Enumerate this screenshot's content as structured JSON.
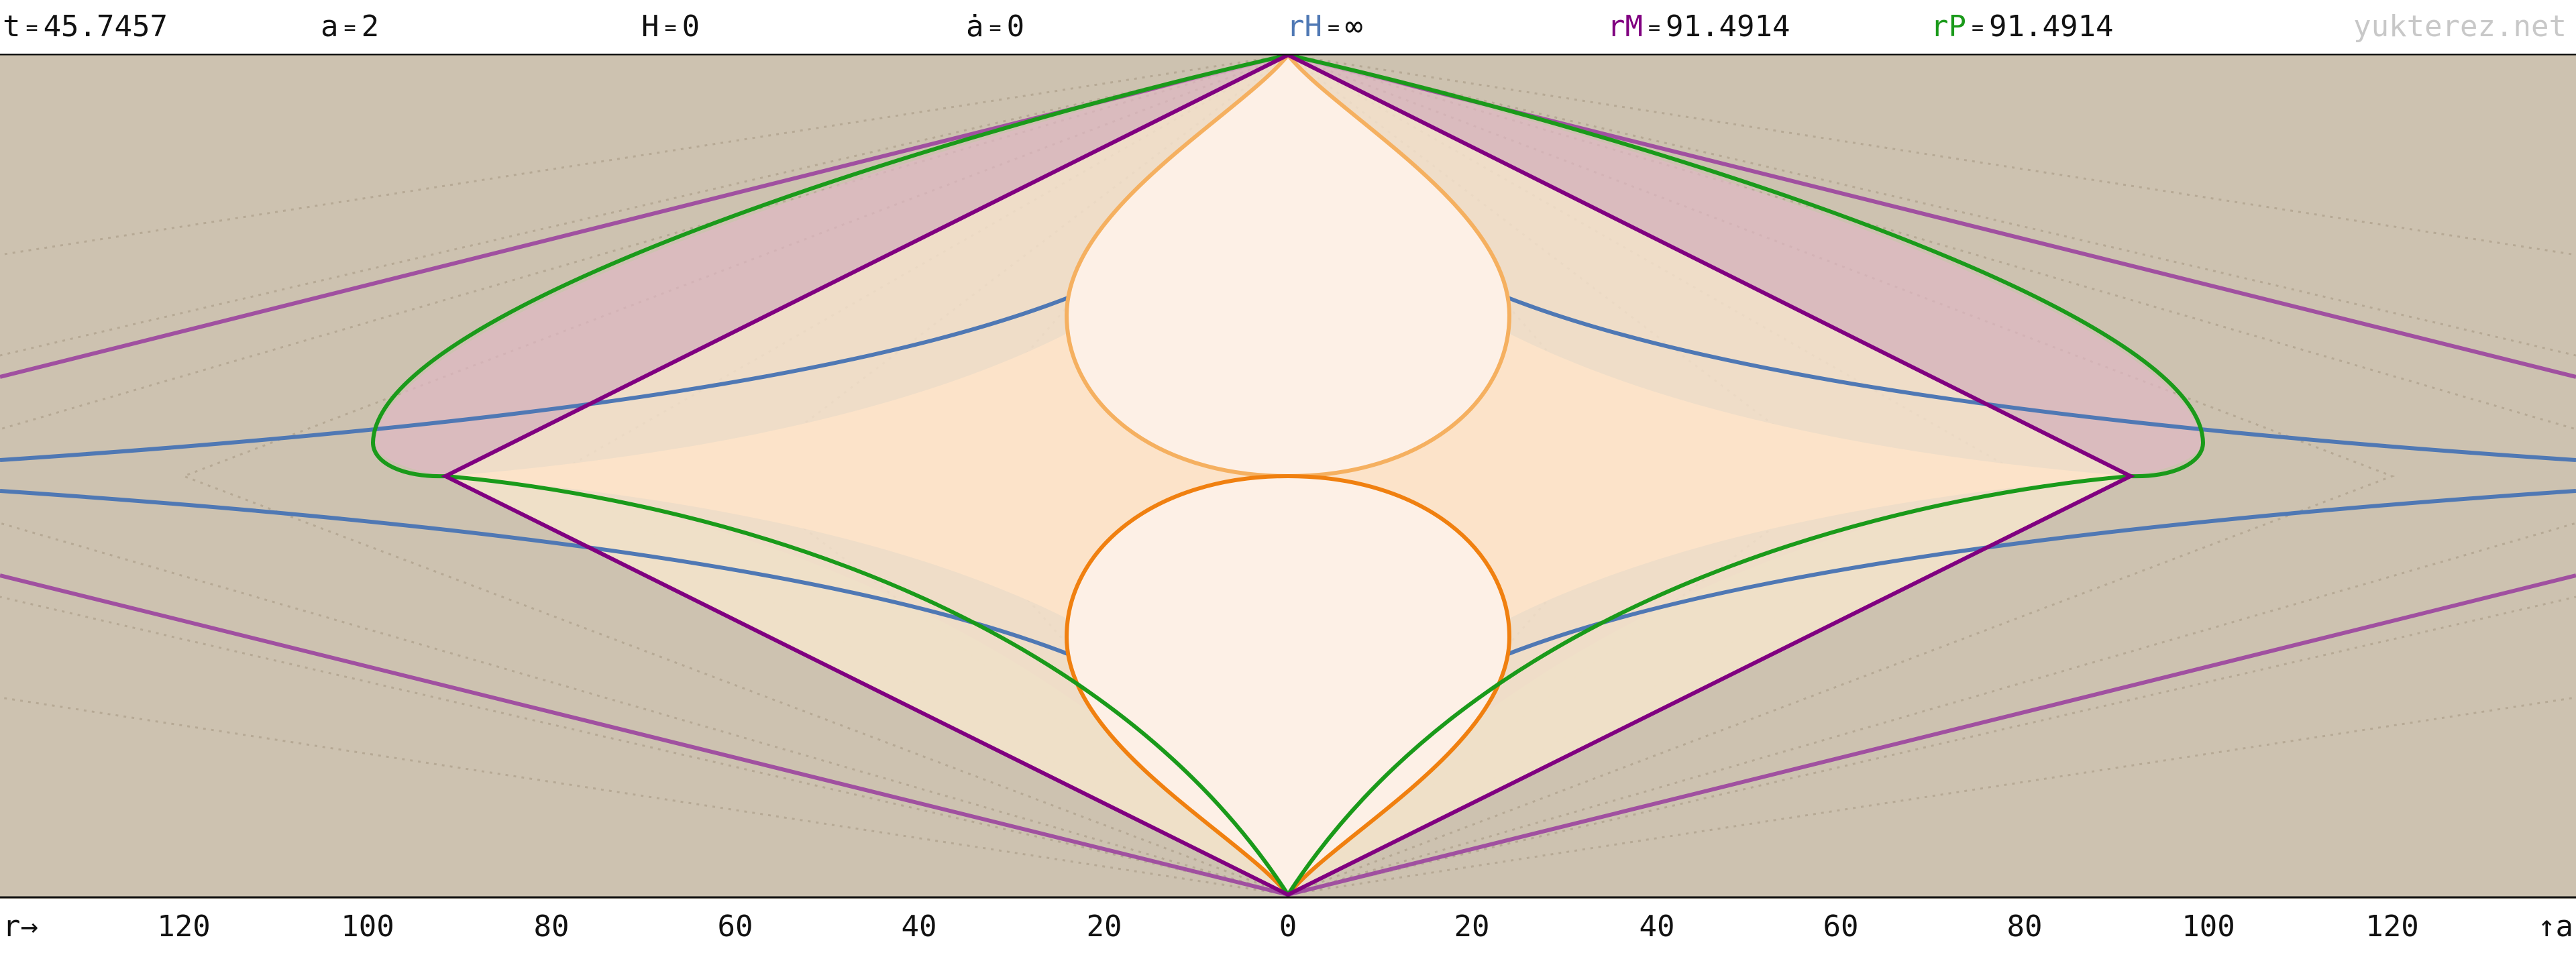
{
  "header": {
    "t": {
      "label": "t",
      "eq": "=",
      "value": "45.7457",
      "color": "#111111"
    },
    "a": {
      "label": "a",
      "eq": "=",
      "value": "2",
      "color": "#111111"
    },
    "H": {
      "label": "H",
      "eq": "=",
      "value": "0",
      "color": "#111111"
    },
    "adot": {
      "label": "ȧ",
      "eq": "=",
      "value": "0",
      "color": "#111111"
    },
    "rH": {
      "label": "rH",
      "eq": "=",
      "value": "∞",
      "color": "#4f78b4"
    },
    "rM": {
      "label": "rM",
      "eq": "=",
      "value": "91.4914",
      "color": "#800080"
    },
    "rP": {
      "label": "rP",
      "eq": "=",
      "value": "91.4914",
      "color": "#1a9a1a"
    },
    "watermark": "yukterez.net"
  },
  "axis": {
    "r_label": "r→",
    "a_label": "↑a",
    "ticks": [
      "120",
      "100",
      "80",
      "60",
      "40",
      "20",
      "0",
      "20",
      "40",
      "60",
      "80",
      "100",
      "120"
    ]
  },
  "colors": {
    "background": "#cdc2b0",
    "grid": "#b8ab98",
    "hubble_blue": "#4f78b4",
    "horizon_purple": "#800080",
    "particle_green": "#1a9a1a",
    "light_orange_dark": "#f08010",
    "light_orange_light": "#f5b060"
  }
}
